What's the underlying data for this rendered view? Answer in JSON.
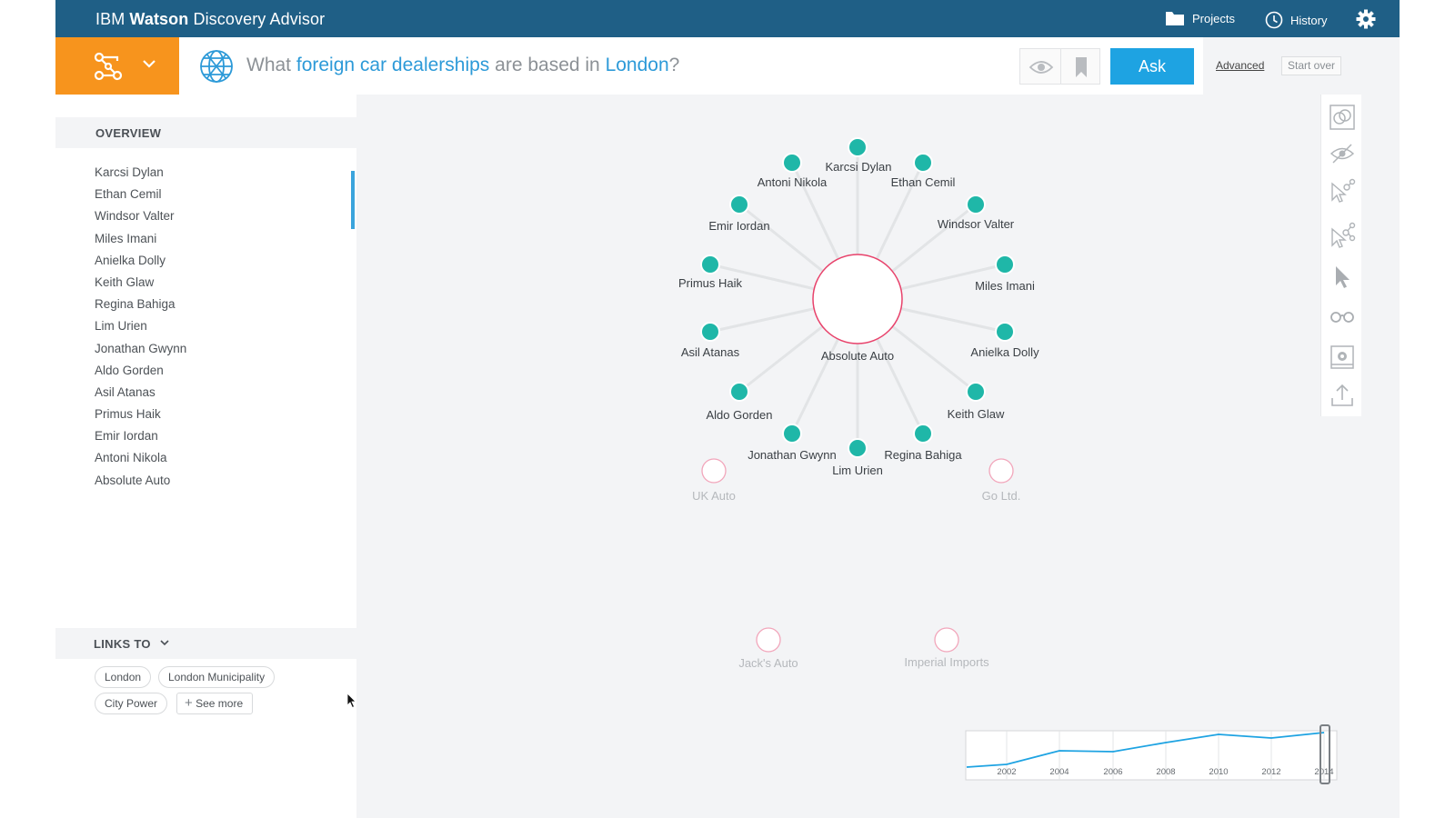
{
  "app": {
    "brand_prefix": "IBM",
    "brand_bold": "Watson",
    "brand_suffix": "Discovery Advisor",
    "projects_label": "Projects",
    "history_label": "History"
  },
  "query": {
    "part1": "What ",
    "hl1": "foreign car dealerships",
    "part2": " are based in ",
    "hl2": "London",
    "part3": "?",
    "ask_label": "Ask",
    "advanced_label": "Advanced",
    "start_over_label": "Start over"
  },
  "overview": {
    "title": "OVERVIEW",
    "items": [
      "Karcsi Dylan",
      "Ethan Cemil",
      "Windsor Valter",
      "Miles Imani",
      "Anielka Dolly",
      "Keith Glaw",
      "Regina Bahiga",
      "Lim Urien",
      "Jonathan Gwynn",
      "Aldo Gorden",
      "Asil Atanas",
      "Primus Haik",
      "Emir Iordan",
      "Antoni Nikola",
      "Absolute Auto"
    ]
  },
  "links_to": {
    "title": "LINKS TO",
    "tags": [
      "London",
      "London Municipality",
      "City Power"
    ],
    "see_more": "See more"
  },
  "graph": {
    "center": "Absolute Auto",
    "nodes": [
      "Karcsi Dylan",
      "Ethan Cemil",
      "Windsor Valter",
      "Miles Imani",
      "Anielka Dolly",
      "Keith Glaw",
      "Regina Bahiga",
      "Lim Urien",
      "Jonathan Gwynn",
      "Aldo Gorden",
      "Asil Atanas",
      "Primus Haik",
      "Emir Iordan",
      "Antoni Nikola"
    ],
    "other_companies": [
      "UK Auto",
      "Go Ltd.",
      "Jack's Auto",
      "Imperial Imports"
    ]
  },
  "timeline": {
    "years": [
      "2002",
      "2004",
      "2006",
      "2008",
      "2010",
      "2012",
      "2014"
    ],
    "selected": "2014"
  },
  "colors": {
    "topbar": "#1f5f86",
    "mode_button": "#f7941d",
    "accent": "#1ea3e2",
    "node": "#1fb7a8",
    "center_node": "#e8426b",
    "faded_node": "#f2a6bb"
  },
  "toolbar_icons": [
    "overlap-icon",
    "hide-eye-icon",
    "select-connected-icon",
    "select-network-icon",
    "pointer-icon",
    "glasses-icon",
    "snapshot-icon",
    "export-icon"
  ]
}
